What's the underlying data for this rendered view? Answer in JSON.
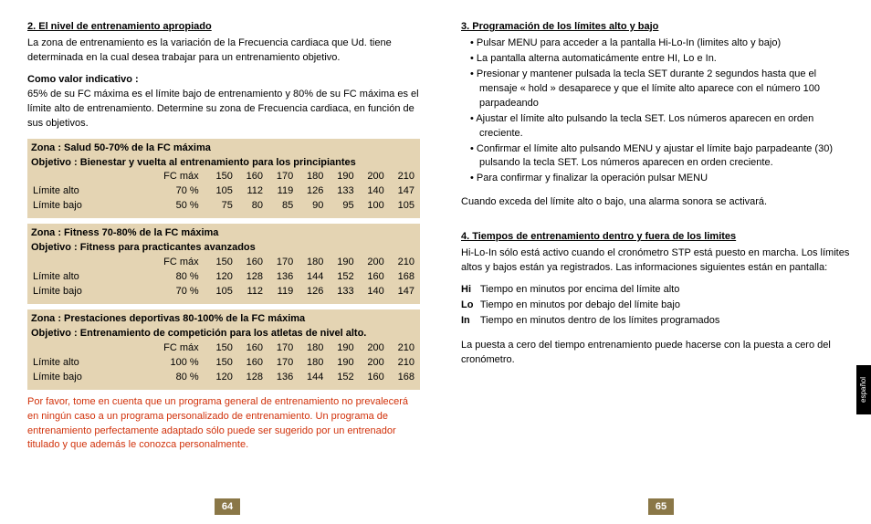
{
  "left": {
    "heading": "2. El nivel de entrenamiento apropiado",
    "intro": "La zona de entrenamiento es la variación de la Frecuencia cardiaca que Ud. tiene determinada en la cual desea trabajar para un entrenamiento objetivo.",
    "indicative_label": "Como valor indicativo :",
    "indicative_text": "65% de su FC máxima es el límite bajo de entrenamiento y 80% de su FC máxima es el límite alto de entrenamiento. Determine su zona de Frecuencia cardiaca, en función de sus objetivos.",
    "fc_header": "FC máx",
    "fc_values": [
      "150",
      "160",
      "170",
      "180",
      "190",
      "200",
      "210"
    ],
    "row_high_label": "Límite alto",
    "row_low_label": "Límite bajo",
    "zones": [
      {
        "title": "Zona : Salud 50-70% de la FC máxima",
        "objective": "Objetivo : Bienestar y vuelta al entrenamiento para los principiantes",
        "high_pct": "70 %",
        "high": [
          "105",
          "112",
          "119",
          "126",
          "133",
          "140",
          "147"
        ],
        "low_pct": "50 %",
        "low": [
          "75",
          "80",
          "85",
          "90",
          "95",
          "100",
          "105"
        ]
      },
      {
        "title": "Zona : Fitness 70-80% de la FC máxima",
        "objective": "Objetivo : Fitness para practicantes avanzados",
        "high_pct": "80 %",
        "high": [
          "120",
          "128",
          "136",
          "144",
          "152",
          "160",
          "168"
        ],
        "low_pct": "70 %",
        "low": [
          "105",
          "112",
          "119",
          "126",
          "133",
          "140",
          "147"
        ]
      },
      {
        "title": "Zona : Prestaciones deportivas 80-100% de la FC máxima",
        "objective": "Objetivo : Entrenamiento de competición para los atletas de nivel alto.",
        "high_pct": "100 %",
        "high": [
          "150",
          "160",
          "170",
          "180",
          "190",
          "200",
          "210"
        ],
        "low_pct": "80 %",
        "low": [
          "120",
          "128",
          "136",
          "144",
          "152",
          "160",
          "168"
        ]
      }
    ],
    "warning": "Por favor, tome en cuenta que un programa general de entrenamiento no prevalecerá en ningún caso a un programa personalizado de entrenamiento. Un programa de entrenamiento perfectamente adaptado sólo puede ser sugerido por un entrenador titulado y que además le conozca personalmente.",
    "page_num": "64"
  },
  "right": {
    "heading3": "3. Programación de los límites alto y bajo",
    "bullets3": [
      "Pulsar MENU para acceder a la pantalla Hi-Lo-In (limites alto y bajo)",
      "La pantalla alterna automaticámente entre HI, Lo e In.",
      "Presionar y mantener pulsada la tecla SET durante 2 segundos hasta que el mensaje « hold » desaparece y que el límite alto aparece con el número 100 parpadeando",
      "Ajustar el límite alto pulsando la tecla SET. Los números aparecen en orden creciente.",
      "Confirmar el límite alto pulsando MENU y ajustar el límite bajo parpadeante (30) pulsando la tecla SET. Los números aparecen en orden creciente.",
      "Para confirmar y finalizar la operación pulsar MENU"
    ],
    "alarm_text": "Cuando exceda del límite alto o bajo, una alarma sonora se activará.",
    "heading4": "4. Tiempos de entrenamiento dentro y fuera de los limites",
    "text4": "Hi-Lo-In sólo está activo cuando el cronómetro STP está puesto en marcha. Los límites altos y bajos están ya registrados. Las informaciones siguientes están en pantalla:",
    "defs": [
      {
        "k": "Hi",
        "v": "Tiempo en minutos por encima del límite alto"
      },
      {
        "k": "Lo",
        "v": "Tiempo en minutos por debajo del límite bajo"
      },
      {
        "k": "In",
        "v": "Tiempo en minutos dentro de los límites programados"
      }
    ],
    "reset_text": "La puesta a cero del tiempo entrenamiento puede hacerse con la puesta a cero del cronómetro.",
    "page_num": "65",
    "side_tab": "español"
  }
}
